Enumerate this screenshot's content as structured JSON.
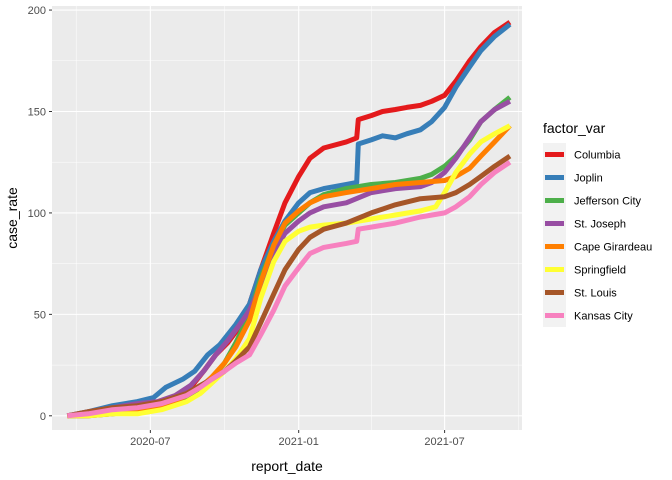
{
  "chart_data": {
    "type": "line",
    "xlabel": "report_date",
    "ylabel": "case_rate",
    "x_ticks": [
      "2020-07",
      "2021-01",
      "2021-07"
    ],
    "y_ticks": [
      0,
      50,
      100,
      150,
      200
    ],
    "xlim": [
      "2020-03-01",
      "2021-10-05"
    ],
    "ylim": [
      -7,
      202
    ],
    "grid": true,
    "legend": {
      "title": "factor_var",
      "position": "right"
    },
    "series": [
      {
        "name": "Columbia",
        "color": "#E41A1C",
        "points": [
          [
            "2020-03-20",
            0
          ],
          [
            "2020-04-15",
            1
          ],
          [
            "2020-05-15",
            3
          ],
          [
            "2020-06-15",
            5
          ],
          [
            "2020-07-10",
            6
          ],
          [
            "2020-08-01",
            9
          ],
          [
            "2020-08-20",
            14
          ],
          [
            "2020-09-05",
            22
          ],
          [
            "2020-09-20",
            30
          ],
          [
            "2020-10-05",
            36
          ],
          [
            "2020-10-20",
            44
          ],
          [
            "2020-11-01",
            55
          ],
          [
            "2020-11-15",
            72
          ],
          [
            "2020-12-01",
            90
          ],
          [
            "2020-12-15",
            105
          ],
          [
            "2021-01-01",
            118
          ],
          [
            "2021-01-15",
            127
          ],
          [
            "2021-02-01",
            132
          ],
          [
            "2021-03-01",
            135
          ],
          [
            "2021-03-14",
            137
          ],
          [
            "2021-03-16",
            146
          ],
          [
            "2021-04-01",
            148
          ],
          [
            "2021-04-15",
            150
          ],
          [
            "2021-05-01",
            151
          ],
          [
            "2021-05-15",
            152
          ],
          [
            "2021-06-01",
            153
          ],
          [
            "2021-06-15",
            155
          ],
          [
            "2021-07-01",
            158
          ],
          [
            "2021-07-15",
            165
          ],
          [
            "2021-08-01",
            175
          ],
          [
            "2021-08-15",
            182
          ],
          [
            "2021-09-01",
            189
          ],
          [
            "2021-09-20",
            194
          ]
        ]
      },
      {
        "name": "Joplin",
        "color": "#377EB8",
        "points": [
          [
            "2020-03-20",
            0
          ],
          [
            "2020-04-15",
            2
          ],
          [
            "2020-05-15",
            5
          ],
          [
            "2020-06-15",
            7
          ],
          [
            "2020-07-05",
            9
          ],
          [
            "2020-07-20",
            14
          ],
          [
            "2020-08-10",
            18
          ],
          [
            "2020-08-25",
            22
          ],
          [
            "2020-09-10",
            30
          ],
          [
            "2020-09-25",
            35
          ],
          [
            "2020-10-15",
            45
          ],
          [
            "2020-11-01",
            55
          ],
          [
            "2020-11-15",
            72
          ],
          [
            "2020-12-01",
            86
          ],
          [
            "2020-12-15",
            96
          ],
          [
            "2021-01-01",
            105
          ],
          [
            "2021-01-15",
            110
          ],
          [
            "2021-02-01",
            112
          ],
          [
            "2021-03-01",
            114
          ],
          [
            "2021-03-14",
            115
          ],
          [
            "2021-03-16",
            134
          ],
          [
            "2021-04-01",
            136
          ],
          [
            "2021-04-15",
            138
          ],
          [
            "2021-05-01",
            137
          ],
          [
            "2021-05-15",
            139
          ],
          [
            "2021-06-01",
            141
          ],
          [
            "2021-06-15",
            145
          ],
          [
            "2021-07-01",
            152
          ],
          [
            "2021-07-15",
            162
          ],
          [
            "2021-08-01",
            172
          ],
          [
            "2021-08-15",
            180
          ],
          [
            "2021-09-01",
            187
          ],
          [
            "2021-09-20",
            193
          ]
        ]
      },
      {
        "name": "Jefferson City",
        "color": "#4DAF4A",
        "points": [
          [
            "2020-03-20",
            0
          ],
          [
            "2020-04-15",
            0
          ],
          [
            "2020-05-15",
            1
          ],
          [
            "2020-06-15",
            2
          ],
          [
            "2020-07-15",
            4
          ],
          [
            "2020-08-15",
            8
          ],
          [
            "2020-09-01",
            12
          ],
          [
            "2020-09-15",
            18
          ],
          [
            "2020-10-01",
            26
          ],
          [
            "2020-10-15",
            36
          ],
          [
            "2020-11-01",
            50
          ],
          [
            "2020-11-15",
            68
          ],
          [
            "2020-12-01",
            84
          ],
          [
            "2020-12-15",
            94
          ],
          [
            "2021-01-01",
            100
          ],
          [
            "2021-01-15",
            105
          ],
          [
            "2021-02-01",
            109
          ],
          [
            "2021-03-01",
            112
          ],
          [
            "2021-04-01",
            114
          ],
          [
            "2021-05-01",
            115
          ],
          [
            "2021-06-01",
            117
          ],
          [
            "2021-06-15",
            119
          ],
          [
            "2021-07-01",
            123
          ],
          [
            "2021-07-15",
            128
          ],
          [
            "2021-08-01",
            136
          ],
          [
            "2021-08-15",
            145
          ],
          [
            "2021-09-01",
            151
          ],
          [
            "2021-09-20",
            157
          ]
        ]
      },
      {
        "name": "St. Joseph",
        "color": "#984EA3",
        "points": [
          [
            "2020-03-20",
            0
          ],
          [
            "2020-04-15",
            2
          ],
          [
            "2020-05-15",
            4
          ],
          [
            "2020-06-15",
            6
          ],
          [
            "2020-07-10",
            7
          ],
          [
            "2020-08-01",
            10
          ],
          [
            "2020-08-20",
            15
          ],
          [
            "2020-09-05",
            22
          ],
          [
            "2020-09-20",
            30
          ],
          [
            "2020-10-05",
            37
          ],
          [
            "2020-10-20",
            45
          ],
          [
            "2020-11-01",
            52
          ],
          [
            "2020-11-15",
            64
          ],
          [
            "2020-12-01",
            80
          ],
          [
            "2020-12-15",
            90
          ],
          [
            "2021-01-01",
            96
          ],
          [
            "2021-01-15",
            100
          ],
          [
            "2021-02-01",
            103
          ],
          [
            "2021-03-01",
            105
          ],
          [
            "2021-04-01",
            110
          ],
          [
            "2021-05-01",
            112
          ],
          [
            "2021-06-01",
            113
          ],
          [
            "2021-06-15",
            115
          ],
          [
            "2021-07-01",
            120
          ],
          [
            "2021-07-15",
            127
          ],
          [
            "2021-08-01",
            137
          ],
          [
            "2021-08-15",
            145
          ],
          [
            "2021-09-01",
            151
          ],
          [
            "2021-09-20",
            155
          ]
        ]
      },
      {
        "name": "Cape Girardeau",
        "color": "#FF7F00",
        "points": [
          [
            "2020-03-20",
            0
          ],
          [
            "2020-04-15",
            0
          ],
          [
            "2020-05-15",
            1
          ],
          [
            "2020-06-15",
            2
          ],
          [
            "2020-07-15",
            4
          ],
          [
            "2020-08-15",
            10
          ],
          [
            "2020-09-01",
            14
          ],
          [
            "2020-09-15",
            19
          ],
          [
            "2020-10-01",
            26
          ],
          [
            "2020-10-15",
            34
          ],
          [
            "2020-11-01",
            47
          ],
          [
            "2020-11-15",
            66
          ],
          [
            "2020-12-01",
            84
          ],
          [
            "2020-12-15",
            95
          ],
          [
            "2021-01-01",
            101
          ],
          [
            "2021-01-15",
            105
          ],
          [
            "2021-02-01",
            108
          ],
          [
            "2021-03-01",
            110
          ],
          [
            "2021-04-01",
            112
          ],
          [
            "2021-05-01",
            114
          ],
          [
            "2021-06-01",
            115
          ],
          [
            "2021-07-01",
            116
          ],
          [
            "2021-07-15",
            118
          ],
          [
            "2021-08-01",
            122
          ],
          [
            "2021-08-15",
            128
          ],
          [
            "2021-09-01",
            135
          ],
          [
            "2021-09-20",
            143
          ]
        ]
      },
      {
        "name": "Springfield",
        "color": "#FFFF33",
        "points": [
          [
            "2020-03-20",
            0
          ],
          [
            "2020-04-15",
            0
          ],
          [
            "2020-05-15",
            1
          ],
          [
            "2020-06-15",
            1
          ],
          [
            "2020-07-15",
            3
          ],
          [
            "2020-08-15",
            7
          ],
          [
            "2020-09-01",
            11
          ],
          [
            "2020-09-15",
            16
          ],
          [
            "2020-10-01",
            22
          ],
          [
            "2020-10-15",
            28
          ],
          [
            "2020-11-01",
            38
          ],
          [
            "2020-11-15",
            58
          ],
          [
            "2020-12-01",
            76
          ],
          [
            "2020-12-15",
            86
          ],
          [
            "2021-01-01",
            91
          ],
          [
            "2021-01-15",
            93
          ],
          [
            "2021-02-01",
            94
          ],
          [
            "2021-03-01",
            95
          ],
          [
            "2021-04-01",
            97
          ],
          [
            "2021-05-01",
            99
          ],
          [
            "2021-06-01",
            101
          ],
          [
            "2021-06-20",
            103
          ],
          [
            "2021-07-01",
            110
          ],
          [
            "2021-07-15",
            120
          ],
          [
            "2021-08-01",
            129
          ],
          [
            "2021-08-15",
            135
          ],
          [
            "2021-09-01",
            139
          ],
          [
            "2021-09-20",
            143
          ]
        ]
      },
      {
        "name": "St. Louis",
        "color": "#A65628",
        "points": [
          [
            "2020-03-20",
            0
          ],
          [
            "2020-04-15",
            2
          ],
          [
            "2020-05-15",
            4
          ],
          [
            "2020-06-15",
            5
          ],
          [
            "2020-07-15",
            7
          ],
          [
            "2020-08-15",
            11
          ],
          [
            "2020-09-01",
            15
          ],
          [
            "2020-09-15",
            18
          ],
          [
            "2020-10-01",
            22
          ],
          [
            "2020-10-15",
            27
          ],
          [
            "2020-11-01",
            34
          ],
          [
            "2020-11-15",
            46
          ],
          [
            "2020-12-01",
            60
          ],
          [
            "2020-12-15",
            72
          ],
          [
            "2021-01-01",
            82
          ],
          [
            "2021-01-15",
            88
          ],
          [
            "2021-02-01",
            92
          ],
          [
            "2021-03-01",
            95
          ],
          [
            "2021-04-01",
            100
          ],
          [
            "2021-05-01",
            104
          ],
          [
            "2021-06-01",
            107
          ],
          [
            "2021-07-01",
            108
          ],
          [
            "2021-07-15",
            110
          ],
          [
            "2021-08-01",
            114
          ],
          [
            "2021-08-15",
            118
          ],
          [
            "2021-09-01",
            123
          ],
          [
            "2021-09-20",
            128
          ]
        ]
      },
      {
        "name": "Kansas City",
        "color": "#F781BF",
        "points": [
          [
            "2020-03-20",
            0
          ],
          [
            "2020-04-15",
            1
          ],
          [
            "2020-05-15",
            3
          ],
          [
            "2020-06-15",
            4
          ],
          [
            "2020-07-15",
            6
          ],
          [
            "2020-08-15",
            10
          ],
          [
            "2020-09-01",
            14
          ],
          [
            "2020-09-15",
            18
          ],
          [
            "2020-10-01",
            22
          ],
          [
            "2020-10-15",
            26
          ],
          [
            "2020-11-01",
            30
          ],
          [
            "2020-11-15",
            40
          ],
          [
            "2020-12-01",
            52
          ],
          [
            "2020-12-15",
            64
          ],
          [
            "2021-01-01",
            73
          ],
          [
            "2021-01-15",
            80
          ],
          [
            "2021-02-01",
            83
          ],
          [
            "2021-03-01",
            85
          ],
          [
            "2021-03-14",
            86
          ],
          [
            "2021-03-16",
            92
          ],
          [
            "2021-04-01",
            93
          ],
          [
            "2021-05-01",
            95
          ],
          [
            "2021-06-01",
            98
          ],
          [
            "2021-07-01",
            100
          ],
          [
            "2021-07-15",
            103
          ],
          [
            "2021-08-01",
            108
          ],
          [
            "2021-08-15",
            114
          ],
          [
            "2021-09-01",
            120
          ],
          [
            "2021-09-20",
            125
          ]
        ]
      }
    ]
  }
}
